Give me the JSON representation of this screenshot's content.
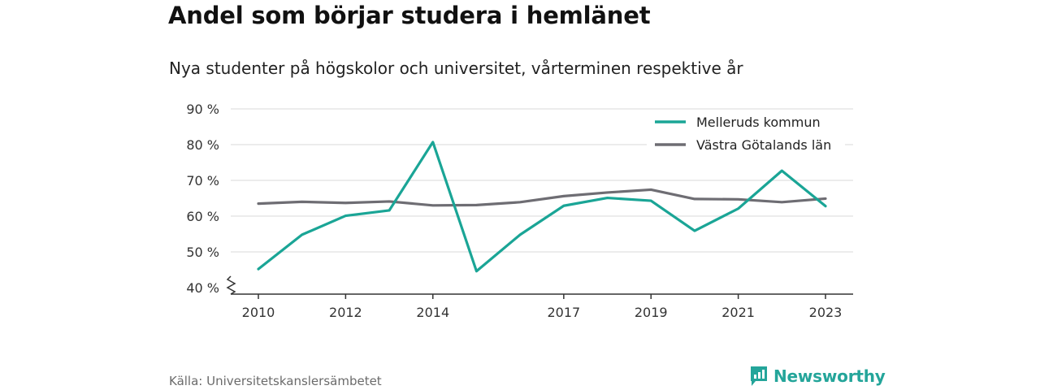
{
  "title": "Andel som börjar studera i hemlänet",
  "subtitle": "Nya studenter på högskolor och universitet, vårterminen respektive år",
  "source": "Källa: Universitetskanslersämbetet",
  "brand": {
    "name": "Newsworthy",
    "color": "#24a59a",
    "icon": "newsworthy-logo-icon"
  },
  "chart_data": {
    "type": "line",
    "x": [
      2010,
      2011,
      2012,
      2013,
      2014,
      2015,
      2016,
      2017,
      2018,
      2019,
      2020,
      2021,
      2022,
      2023
    ],
    "x_tick_labels": [
      "2010",
      "2012",
      "2014",
      "2017",
      "2019",
      "2021",
      "2023"
    ],
    "x_ticks": [
      2010,
      2012,
      2014,
      2017,
      2019,
      2021,
      2023
    ],
    "y_ticks": [
      40,
      50,
      60,
      70,
      80,
      90
    ],
    "y_tick_labels": [
      "40 %",
      "50 %",
      "60 %",
      "70 %",
      "80 %",
      "90 %"
    ],
    "ylim": [
      40,
      90
    ],
    "xlim": [
      2009.5,
      2023.6
    ],
    "y_axis_break": true,
    "grid": "horizontal",
    "legend_position": "top-right",
    "series": [
      {
        "name": "Melleruds kommun",
        "color": "#1aa596",
        "values": [
          45.2,
          54.8,
          60.1,
          61.6,
          80.7,
          44.6,
          54.8,
          62.9,
          65.1,
          64.3,
          55.9,
          62.1,
          72.7,
          62.8
        ]
      },
      {
        "name": "Västra Götalands län",
        "color": "#6e6d73",
        "values": [
          63.5,
          64.0,
          63.7,
          64.1,
          63.0,
          63.1,
          63.9,
          65.6,
          66.6,
          67.4,
          64.8,
          64.7,
          63.9,
          64.9
        ]
      }
    ]
  }
}
